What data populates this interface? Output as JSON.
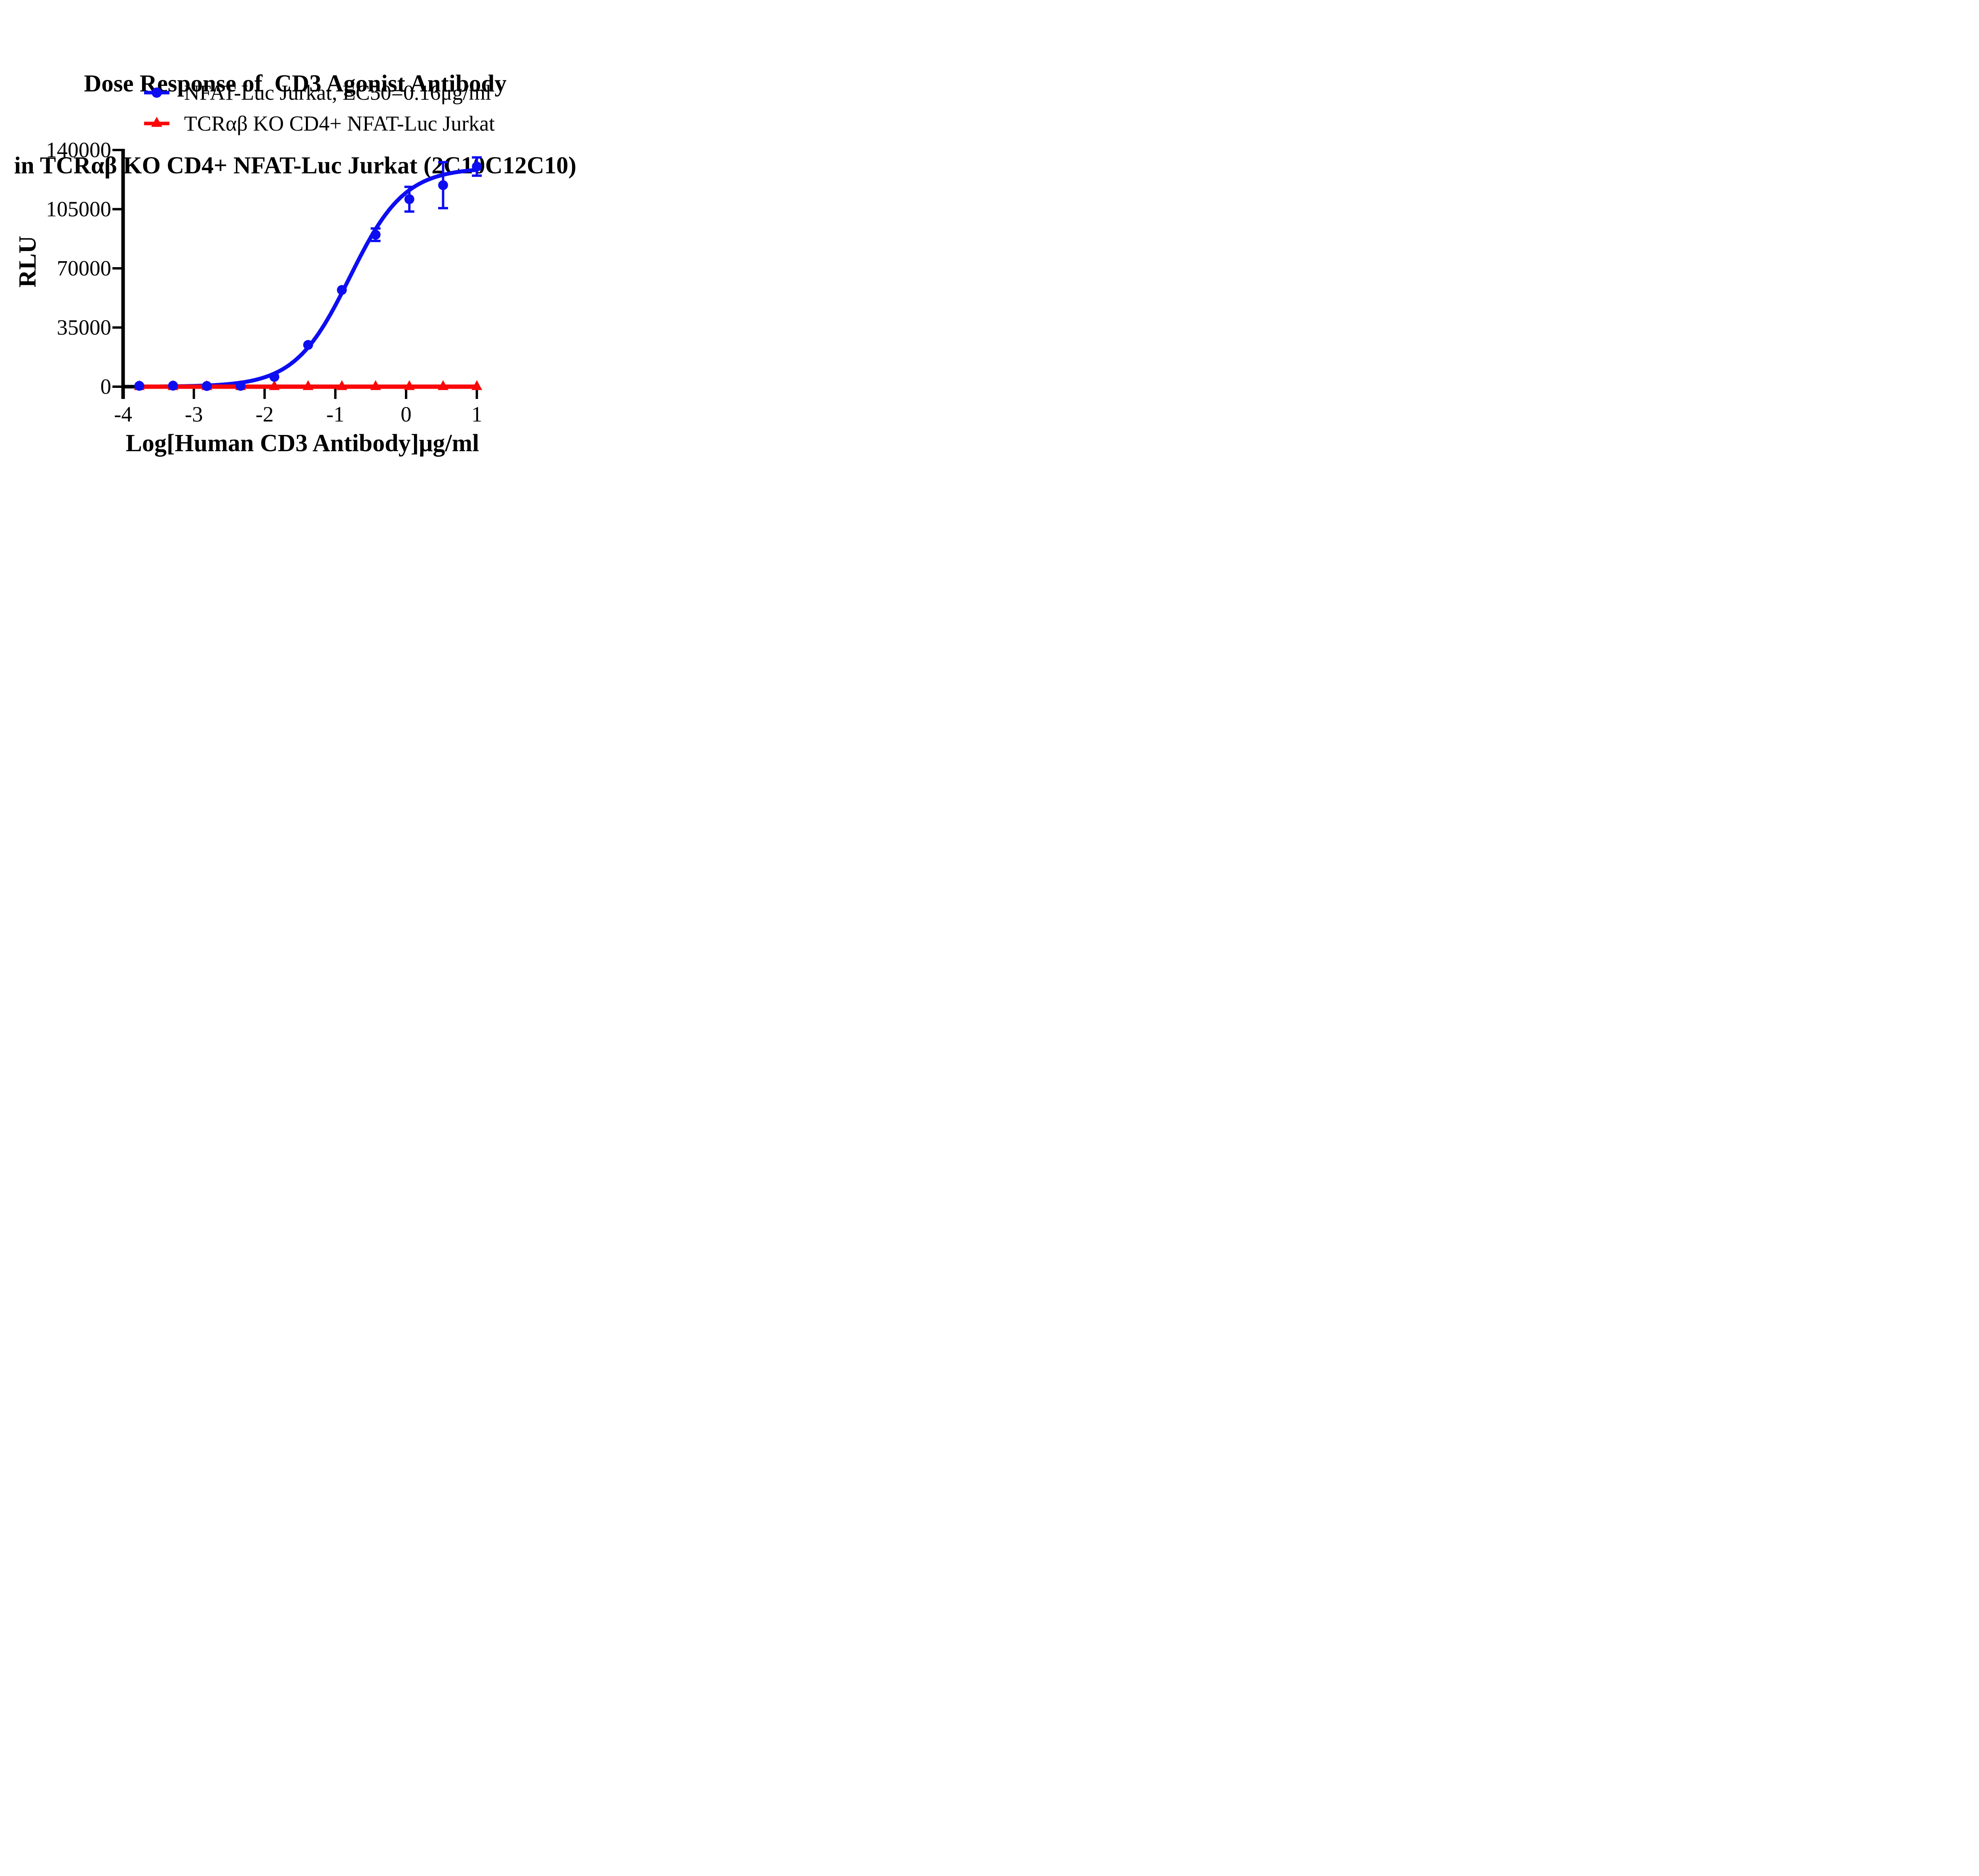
{
  "chart_data": {
    "type": "scatter",
    "title_line1": "Dose Response of  CD3 Agonist Antibody",
    "title_line2": "in TCRαβ KO CD4+ NFAT-Luc Jurkat (2C10C12C10)",
    "xlabel": "Log[Human CD3 Antibody]μg/ml",
    "ylabel": "RLU",
    "xlim": [
      -4,
      1
    ],
    "ylim": [
      0,
      140000
    ],
    "xtick_labels": [
      "-4",
      "-3",
      "-2",
      "-1",
      "0",
      "1"
    ],
    "ytick_labels": [
      "0",
      "35000",
      "70000",
      "105000",
      "140000"
    ],
    "grid": false,
    "legend_position": "top-left above plot",
    "background_color": "#ffffff",
    "axis_color": "#000000",
    "series": [
      {
        "name": "NFAT-Luc Jurkat, EC50=0.16μg/ml",
        "color": "#0D0DF2",
        "marker": "circle",
        "x": [
          -3.771,
          -3.294,
          -2.816,
          -2.339,
          -1.862,
          -1.385,
          -0.908,
          -0.431,
          0.046,
          0.523,
          1.0
        ],
        "y": [
          500,
          600,
          400,
          500,
          5800,
          24700,
          57200,
          89900,
          110900,
          119200,
          130200
        ],
        "yerr": [
          0,
          0,
          0,
          0,
          0,
          0,
          0,
          3700,
          7300,
          13600,
          5400
        ]
      },
      {
        "name": "TCRαβ KO CD4+ NFAT-Luc Jurkat",
        "color": "#FA0707",
        "marker": "triangle-up",
        "x": [
          -3.771,
          -3.294,
          -2.816,
          -2.339,
          -1.862,
          -1.385,
          -0.908,
          -0.431,
          0.046,
          0.523,
          1.0
        ],
        "y": [
          0,
          0,
          0,
          0,
          0,
          0,
          0,
          0,
          0,
          0,
          0
        ],
        "yerr": [
          0,
          0,
          0,
          0,
          0,
          0,
          0,
          0,
          0,
          0,
          0
        ]
      }
    ],
    "fit_curve": {
      "model": "4PL sigmoid",
      "bottom": 0,
      "top": 129500,
      "logEC50": -0.796,
      "hill": 1.12,
      "x_range": [
        -3.771,
        1.0
      ],
      "EC50_label_value": "0.16μg/ml"
    }
  }
}
